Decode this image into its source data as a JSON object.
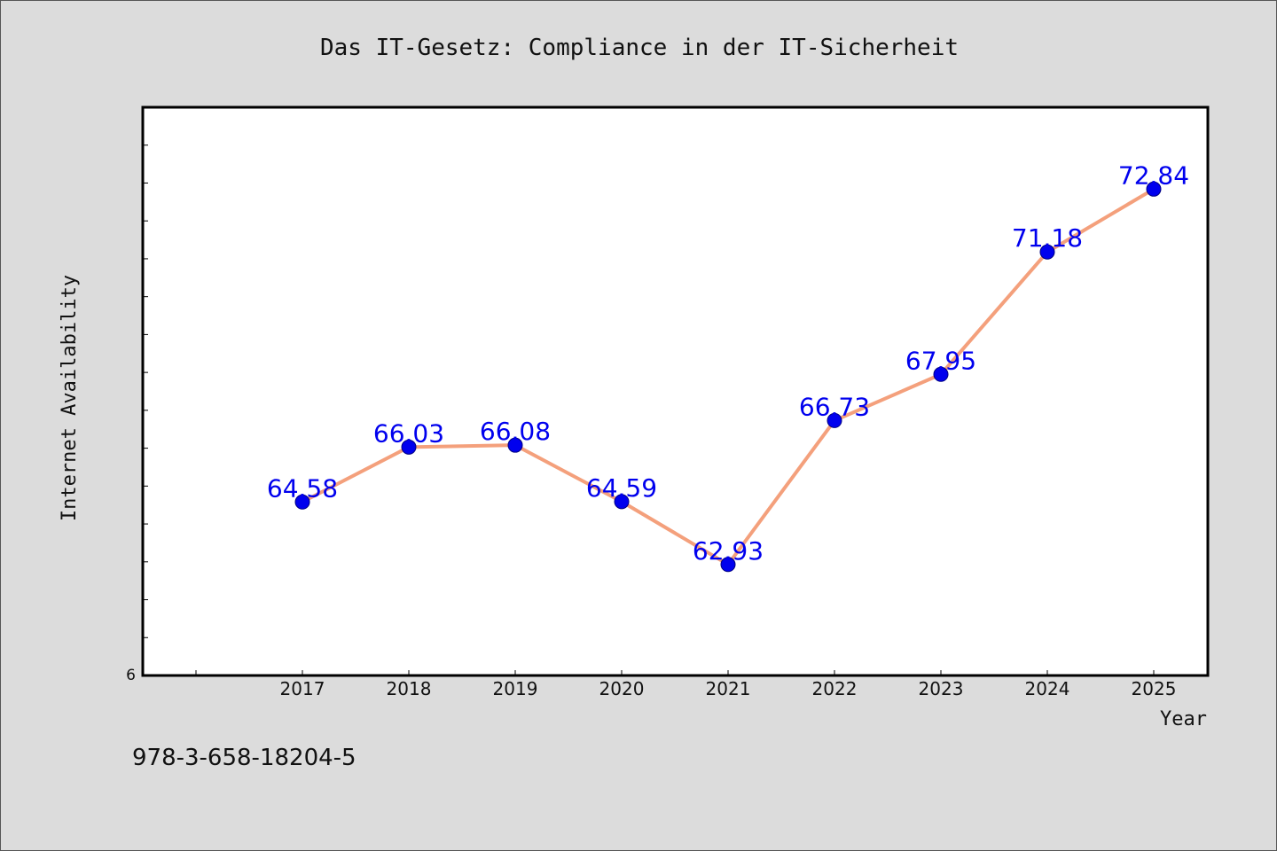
{
  "chart_data": {
    "type": "line",
    "title": "Das IT-Gesetz: Compliance in der IT-Sicherheit",
    "xlabel": "Year",
    "ylabel": "Internet Availability",
    "x": [
      "2017",
      "2018",
      "2019",
      "2020",
      "2021",
      "2022",
      "2023",
      "2024",
      "2025"
    ],
    "series": [
      {
        "values": [
          64.58,
          66.03,
          66.08,
          64.59,
          62.93,
          66.73,
          67.95,
          71.18,
          72.84
        ],
        "line_color": "#f4a07c",
        "marker_color": "#0000ee"
      }
    ],
    "data_labels": [
      "64.58",
      "66.03",
      "66.08",
      "64.59",
      "62.93",
      "66.73",
      "67.95",
      "71.18",
      "72.84"
    ],
    "ylim": [
      60,
      75
    ],
    "y_tick_labels": [
      "6"
    ],
    "grid": false,
    "background": "#ffffff",
    "figure_background": "#dcdcdc",
    "label_color": "#0000ee"
  },
  "footer": {
    "isbn": "978-3-658-18204-5"
  }
}
